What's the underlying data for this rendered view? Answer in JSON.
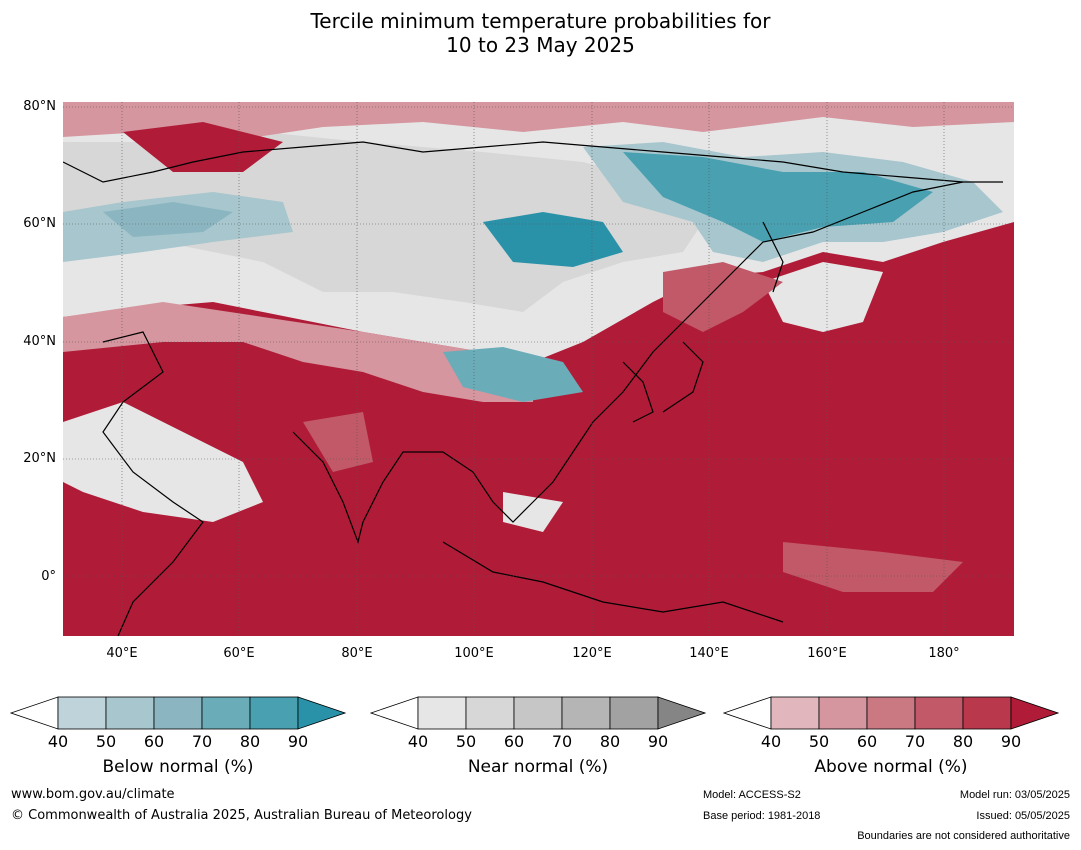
{
  "title_line1": "Tercile minimum temperature probabilities for",
  "title_line2": "10 to 23 May 2025",
  "lat_labels": [
    "80°N",
    "60°N",
    "40°N",
    "20°N",
    "0°"
  ],
  "lon_labels": [
    "40°E",
    "60°E",
    "80°E",
    "100°E",
    "120°E",
    "140°E",
    "160°E",
    "180°"
  ],
  "colorbars": [
    {
      "title": "Below normal (%)",
      "ticks": [
        "40",
        "50",
        "60",
        "70",
        "80",
        "90"
      ],
      "colors": [
        "#ffffff",
        "#bed3da",
        "#a7c6cd",
        "#8bb6c1",
        "#6aacb8",
        "#48a0b0",
        "#2a92a8"
      ]
    },
    {
      "title": "Near normal (%)",
      "ticks": [
        "40",
        "50",
        "60",
        "70",
        "80",
        "90"
      ],
      "colors": [
        "#ffffff",
        "#e6e6e6",
        "#d7d7d7",
        "#c6c6c6",
        "#b5b5b5",
        "#a2a2a2",
        "#858585"
      ]
    },
    {
      "title": "Above normal (%)",
      "ticks": [
        "40",
        "50",
        "60",
        "70",
        "80",
        "90"
      ],
      "colors": [
        "#ffffff",
        "#e1b7bd",
        "#d5969f",
        "#ca7983",
        "#c15968",
        "#b9384b",
        "#b01c38"
      ]
    }
  ],
  "footer": {
    "website": "www.bom.gov.au/climate",
    "copyright": "© Commonwealth of Australia 2025, Australian Bureau of Meteorology",
    "model": "Model: ACCESS-S2",
    "base_period": "Base period: 1981-2018",
    "model_run": "Model run: 03/05/2025",
    "issued": "Issued: 05/05/2025",
    "disclaimer": "Boundaries are not considered authoritative"
  },
  "map_colors": {
    "above_strong": "#b01c38",
    "above_mid": "#c15968",
    "above_weak": "#d5969f",
    "near": "#d7d7d7",
    "near_weak": "#e6e6e6",
    "below_weak": "#a7c6cd",
    "below_strong": "#2a92a8"
  }
}
